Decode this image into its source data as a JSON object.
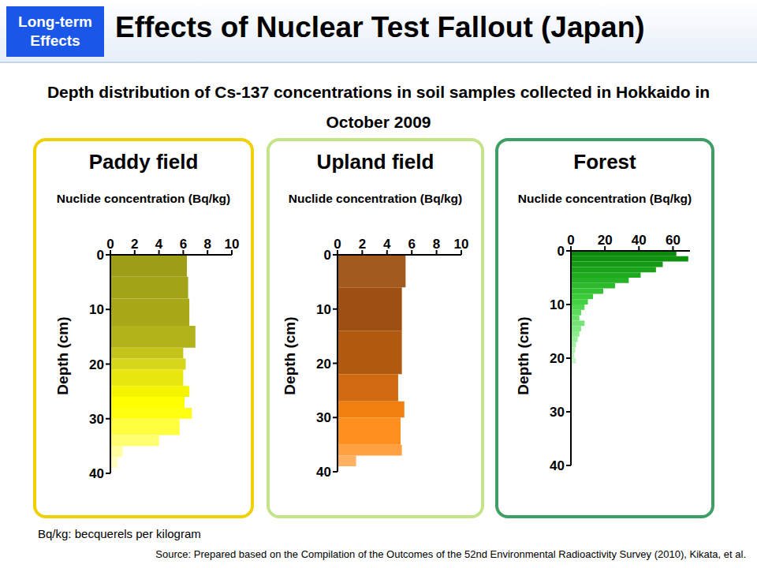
{
  "header": {
    "tag": "Long-term Effects",
    "title": "Effects of Nuclear Test Fallout (Japan)"
  },
  "subtitle": "Depth distribution of Cs-137 concentrations in soil samples collected in Hokkaido in October 2009",
  "chart_data": [
    {
      "type": "bar",
      "orientation": "horizontal",
      "title": "Paddy field",
      "x_label": "Nuclide concentration (Bq/kg)",
      "y_label": "Depth (cm)",
      "xlim": [
        0,
        10
      ],
      "xticks": [
        0,
        2,
        4,
        6,
        8,
        10
      ],
      "ylim": [
        0,
        40
      ],
      "yticks": [
        0,
        10,
        20,
        30,
        40
      ],
      "bins": [
        0,
        4,
        8,
        13,
        17,
        19,
        21,
        24,
        26,
        28,
        30,
        33,
        35,
        37,
        39
      ],
      "values": [
        6.3,
        6.4,
        6.5,
        7.0,
        6.0,
        6.2,
        6.0,
        6.5,
        6.1,
        6.7,
        5.7,
        4.0,
        1.0,
        0.6
      ],
      "colors": [
        "#9e9e16",
        "#a3a317",
        "#a8a818",
        "#b2b21a",
        "#c4c41a",
        "#d6d61a",
        "#e8e810",
        "#f5f500",
        "#ffff00",
        "#ffff10",
        "#ffff40",
        "#ffff70",
        "#ffffa0",
        "#ffffc0"
      ]
    },
    {
      "type": "bar",
      "orientation": "horizontal",
      "title": "Upland field",
      "x_label": "Nuclide concentration (Bq/kg)",
      "y_label": "Depth (cm)",
      "xlim": [
        0,
        10
      ],
      "xticks": [
        0,
        2,
        4,
        6,
        8,
        10
      ],
      "ylim": [
        0,
        40
      ],
      "yticks": [
        0,
        10,
        20,
        30,
        40
      ],
      "bins": [
        0,
        6,
        14,
        22,
        27,
        30,
        35,
        37,
        39
      ],
      "values": [
        5.5,
        5.2,
        5.2,
        4.9,
        5.4,
        5.1,
        5.2,
        1.5
      ],
      "colors": [
        "#a35a1e",
        "#9e4f12",
        "#b05a10",
        "#d06a10",
        "#f07f10",
        "#ff9020",
        "#ffa040",
        "#ffb060"
      ]
    },
    {
      "type": "bar",
      "orientation": "horizontal",
      "title": "Forest",
      "x_label": "Nuclide concentration (Bq/kg)",
      "y_label": "Depth (cm)",
      "xlim": [
        0,
        70
      ],
      "xticks": [
        0,
        20,
        40,
        60
      ],
      "ylim": [
        0,
        40
      ],
      "yticks": [
        0,
        10,
        20,
        30,
        40
      ],
      "bins": [
        0,
        1,
        2,
        3,
        4,
        5,
        6,
        7,
        8,
        9,
        10,
        11,
        12,
        13,
        14,
        15,
        16,
        17,
        18,
        19,
        20,
        21,
        22,
        23,
        24
      ],
      "values": [
        62,
        69,
        54,
        50,
        41,
        34,
        26,
        19,
        13,
        10,
        8,
        6,
        5,
        8,
        6,
        5,
        4,
        3,
        2.5,
        2,
        3,
        1,
        1,
        0.5
      ],
      "colors": [
        "#0a8a0a",
        "#0f920f",
        "#149a14",
        "#1aa21a",
        "#20aa20",
        "#26b226",
        "#2cba2c",
        "#33c233",
        "#3aca3a",
        "#44d044",
        "#50d650",
        "#5cdc5c",
        "#68e068",
        "#74e474",
        "#80e880",
        "#8cec8c",
        "#98ee98",
        "#a4f0a4",
        "#b0f2b0",
        "#bcf4bc",
        "#c8f6c8",
        "#d4f8d4",
        "#e0fae0",
        "#ecfcec"
      ]
    }
  ],
  "note": "Bq/kg: becquerels per kilogram",
  "source": "Source: Prepared based on the Compilation of the Outcomes of the 52nd Environmental Radioactivity Survey (2010), Kikata, et al."
}
